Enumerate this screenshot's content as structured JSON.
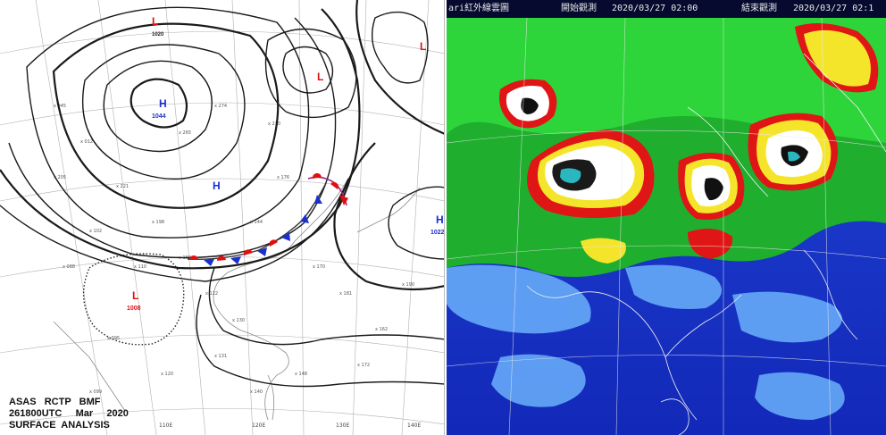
{
  "surface_analysis": {
    "stamp": {
      "line1": "ASAS   RCTP   BMF",
      "line2": "261800UTC     Mar     2020",
      "line3": "SURFACE  ANALYSIS"
    },
    "pressure_centers": [
      {
        "type": "H",
        "value": "1044",
        "color": "#1a2fd0"
      },
      {
        "type": "H",
        "value": "",
        "color": "#1a2fd0"
      },
      {
        "type": "H",
        "value": "1022",
        "color": "#1a2fd0"
      },
      {
        "type": "L",
        "value": "1008",
        "color": "#e01010"
      },
      {
        "type": "L",
        "value": "",
        "color": "#e01010"
      },
      {
        "type": "L",
        "value": "",
        "color": "#e01010"
      },
      {
        "type": "L",
        "value": "",
        "color": "#e01010"
      }
    ],
    "isobar_label": "1020",
    "longitude_labels": [
      "110E",
      "120E",
      "130E",
      "140E"
    ],
    "front_colors": {
      "warm": "#e01010",
      "cold": "#1a2fd0"
    }
  },
  "ir_image": {
    "title": "ari紅外線雲圖",
    "start_label": "開始觀測",
    "start_time": "2020/03/27 02:00",
    "end_label": "結束觀測",
    "end_time": "2020/03/27 02:1"
  }
}
